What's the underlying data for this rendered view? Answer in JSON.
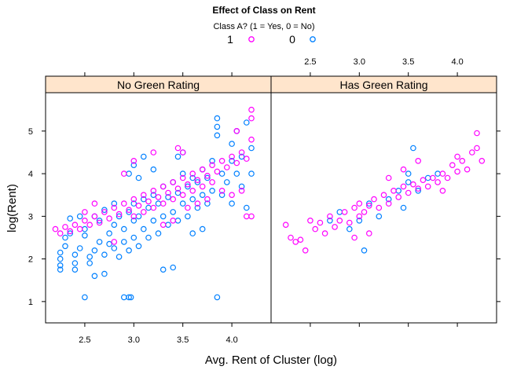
{
  "chart_data": {
    "type": "scatter",
    "title": "Effect of Class on Rent",
    "xlabel": "Avg. Rent of Cluster (log)",
    "ylabel": "log(Rent)",
    "legend": {
      "title": "Class A? (1 = Yes, 0 = No)",
      "placement": "top",
      "entries": [
        {
          "label": "1",
          "color": "#ff00ff"
        },
        {
          "label": "0",
          "color": "#0080ff"
        }
      ]
    },
    "xlim": [
      2.1,
      4.4
    ],
    "ylim": [
      0.5,
      5.9
    ],
    "x_ticks": [
      "2.5",
      "3.0",
      "3.5",
      "4.0"
    ],
    "y_ticks": [
      "1",
      "2",
      "3",
      "4",
      "5"
    ],
    "panels": [
      {
        "label": "No Green Rating",
        "strip_color": "#ffe5cc",
        "series": [
          {
            "name": "0",
            "color": "#0080ff",
            "points": [
              [
                2.25,
                1.75
              ],
              [
                2.25,
                1.85
              ],
              [
                2.25,
                2.0
              ],
              [
                2.25,
                2.15
              ],
              [
                2.3,
                2.3
              ],
              [
                2.3,
                2.5
              ],
              [
                2.35,
                2.6
              ],
              [
                2.4,
                1.75
              ],
              [
                2.4,
                1.9
              ],
              [
                2.4,
                2.1
              ],
              [
                2.45,
                2.25
              ],
              [
                2.5,
                2.55
              ],
              [
                2.5,
                2.7
              ],
              [
                2.55,
                1.9
              ],
              [
                2.55,
                2.05
              ],
              [
                2.6,
                1.6
              ],
              [
                2.6,
                2.2
              ],
              [
                2.65,
                2.4
              ],
              [
                2.65,
                2.9
              ],
              [
                2.7,
                1.65
              ],
              [
                2.7,
                2.1
              ],
              [
                2.75,
                2.35
              ],
              [
                2.75,
                2.6
              ],
              [
                2.8,
                2.25
              ],
              [
                2.8,
                2.8
              ],
              [
                2.85,
                2.05
              ],
              [
                2.85,
                3.0
              ],
              [
                2.9,
                2.4
              ],
              [
                2.9,
                2.7
              ],
              [
                2.95,
                2.2
              ],
              [
                2.95,
                3.1
              ],
              [
                3.0,
                2.5
              ],
              [
                3.0,
                2.9
              ],
              [
                3.0,
                3.3
              ],
              [
                3.05,
                2.3
              ],
              [
                3.05,
                3.0
              ],
              [
                3.1,
                2.7
              ],
              [
                3.1,
                3.4
              ],
              [
                3.15,
                2.5
              ],
              [
                3.15,
                3.2
              ],
              [
                3.2,
                2.9
              ],
              [
                3.2,
                3.5
              ],
              [
                3.25,
                2.6
              ],
              [
                3.25,
                3.3
              ],
              [
                3.3,
                3.0
              ],
              [
                3.3,
                3.7
              ],
              [
                3.35,
                2.8
              ],
              [
                3.35,
                3.45
              ],
              [
                3.4,
                3.1
              ],
              [
                3.4,
                3.8
              ],
              [
                3.45,
                2.9
              ],
              [
                3.45,
                3.55
              ],
              [
                3.5,
                3.3
              ],
              [
                3.5,
                4.0
              ],
              [
                3.55,
                3.0
              ],
              [
                3.55,
                3.7
              ],
              [
                3.6,
                3.4
              ],
              [
                3.6,
                3.9
              ],
              [
                3.65,
                3.2
              ],
              [
                3.65,
                3.8
              ],
              [
                3.7,
                3.5
              ],
              [
                3.7,
                4.1
              ],
              [
                3.75,
                3.3
              ],
              [
                3.75,
                3.9
              ],
              [
                3.8,
                3.6
              ],
              [
                3.8,
                4.3
              ],
              [
                3.85,
                4.9
              ],
              [
                3.85,
                5.1
              ],
              [
                3.85,
                5.3
              ],
              [
                3.9,
                3.5
              ],
              [
                3.9,
                4.0
              ],
              [
                3.95,
                3.8
              ],
              [
                4.0,
                4.3
              ],
              [
                4.0,
                4.7
              ],
              [
                4.0,
                3.3
              ],
              [
                4.05,
                4.0
              ],
              [
                4.05,
                5.0
              ],
              [
                4.1,
                3.7
              ],
              [
                4.1,
                4.4
              ],
              [
                4.15,
                5.2
              ],
              [
                4.15,
                3.2
              ],
              [
                4.2,
                4.0
              ],
              [
                4.2,
                4.6
              ],
              [
                2.5,
                1.1
              ],
              [
                2.9,
                1.1
              ],
              [
                2.95,
                1.1
              ],
              [
                2.97,
                1.1
              ],
              [
                3.85,
                1.1
              ],
              [
                2.95,
                4.0
              ],
              [
                3.0,
                4.2
              ],
              [
                3.05,
                3.9
              ],
              [
                3.1,
                4.4
              ],
              [
                3.2,
                4.1
              ],
              [
                3.3,
                1.75
              ],
              [
                3.4,
                1.8
              ],
              [
                2.6,
                3.0
              ],
              [
                2.7,
                3.15
              ],
              [
                2.8,
                3.3
              ],
              [
                3.6,
                2.6
              ],
              [
                3.7,
                2.7
              ],
              [
                3.45,
                4.4
              ],
              [
                3.5,
                4.5
              ],
              [
                2.35,
                2.95
              ],
              [
                2.45,
                3.0
              ]
            ]
          },
          {
            "name": "1",
            "color": "#ff00ff",
            "points": [
              [
                2.2,
                2.7
              ],
              [
                2.25,
                2.6
              ],
              [
                2.3,
                2.75
              ],
              [
                2.35,
                2.65
              ],
              [
                2.4,
                2.8
              ],
              [
                2.45,
                2.7
              ],
              [
                2.5,
                2.9
              ],
              [
                2.55,
                2.8
              ],
              [
                2.6,
                3.0
              ],
              [
                2.65,
                2.85
              ],
              [
                2.7,
                3.1
              ],
              [
                2.75,
                2.95
              ],
              [
                2.8,
                3.2
              ],
              [
                2.85,
                3.05
              ],
              [
                2.9,
                3.3
              ],
              [
                2.95,
                3.15
              ],
              [
                3.0,
                3.4
              ],
              [
                3.0,
                3.0
              ],
              [
                3.05,
                3.25
              ],
              [
                3.1,
                3.5
              ],
              [
                3.1,
                3.1
              ],
              [
                3.15,
                3.35
              ],
              [
                3.2,
                3.6
              ],
              [
                3.2,
                3.2
              ],
              [
                3.25,
                3.45
              ],
              [
                3.3,
                3.7
              ],
              [
                3.3,
                3.3
              ],
              [
                3.35,
                3.55
              ],
              [
                3.4,
                3.8
              ],
              [
                3.4,
                3.4
              ],
              [
                3.45,
                3.65
              ],
              [
                3.5,
                3.9
              ],
              [
                3.5,
                3.5
              ],
              [
                3.55,
                3.75
              ],
              [
                3.6,
                4.0
              ],
              [
                3.6,
                3.6
              ],
              [
                3.65,
                3.85
              ],
              [
                3.7,
                4.1
              ],
              [
                3.7,
                3.7
              ],
              [
                3.75,
                3.95
              ],
              [
                3.8,
                4.2
              ],
              [
                3.8,
                3.8
              ],
              [
                3.85,
                4.05
              ],
              [
                3.9,
                4.3
              ],
              [
                3.95,
                4.15
              ],
              [
                4.0,
                4.4
              ],
              [
                4.05,
                4.25
              ],
              [
                4.1,
                4.5
              ],
              [
                4.15,
                4.35
              ],
              [
                4.2,
                5.5
              ],
              [
                4.2,
                5.3
              ],
              [
                4.2,
                4.8
              ],
              [
                4.2,
                3.0
              ],
              [
                4.15,
                3.0
              ],
              [
                4.05,
                5.0
              ],
              [
                4.1,
                3.6
              ],
              [
                3.45,
                4.6
              ],
              [
                3.5,
                4.5
              ],
              [
                3.2,
                4.5
              ],
              [
                3.0,
                4.3
              ],
              [
                2.9,
                4.0
              ],
              [
                2.8,
                2.4
              ],
              [
                2.6,
                3.3
              ],
              [
                2.5,
                3.1
              ],
              [
                3.3,
                2.8
              ],
              [
                3.4,
                2.9
              ],
              [
                3.55,
                3.2
              ],
              [
                3.65,
                3.3
              ],
              [
                3.75,
                3.4
              ],
              [
                3.9,
                3.6
              ],
              [
                4.0,
                3.5
              ]
            ]
          }
        ]
      },
      {
        "label": "Has Green Rating",
        "strip_color": "#ffe5cc",
        "series": [
          {
            "name": "0",
            "color": "#0080ff",
            "points": [
              [
                2.7,
                2.9
              ],
              [
                2.8,
                3.1
              ],
              [
                2.9,
                2.7
              ],
              [
                3.0,
                2.9
              ],
              [
                3.05,
                2.2
              ],
              [
                3.1,
                3.3
              ],
              [
                3.2,
                3.0
              ],
              [
                3.3,
                3.4
              ],
              [
                3.4,
                3.6
              ],
              [
                3.45,
                3.2
              ],
              [
                3.5,
                3.8
              ],
              [
                3.5,
                4.0
              ],
              [
                3.55,
                4.6
              ],
              [
                3.6,
                3.6
              ],
              [
                3.7,
                3.9
              ],
              [
                3.8,
                4.0
              ]
            ]
          },
          {
            "name": "1",
            "color": "#ff00ff",
            "points": [
              [
                2.25,
                2.8
              ],
              [
                2.3,
                2.5
              ],
              [
                2.35,
                2.4
              ],
              [
                2.4,
                2.45
              ],
              [
                2.45,
                2.2
              ],
              [
                2.5,
                2.9
              ],
              [
                2.55,
                2.7
              ],
              [
                2.6,
                2.85
              ],
              [
                2.65,
                2.6
              ],
              [
                2.7,
                3.0
              ],
              [
                2.75,
                2.75
              ],
              [
                2.8,
                2.9
              ],
              [
                2.85,
                3.1
              ],
              [
                2.9,
                2.85
              ],
              [
                2.95,
                3.2
              ],
              [
                3.0,
                3.0
              ],
              [
                3.0,
                3.3
              ],
              [
                3.05,
                3.1
              ],
              [
                3.1,
                3.25
              ],
              [
                3.15,
                3.4
              ],
              [
                3.2,
                3.2
              ],
              [
                3.25,
                3.5
              ],
              [
                3.3,
                3.3
              ],
              [
                3.35,
                3.6
              ],
              [
                3.4,
                3.45
              ],
              [
                3.45,
                3.7
              ],
              [
                3.5,
                3.55
              ],
              [
                3.55,
                3.75
              ],
              [
                3.6,
                3.65
              ],
              [
                3.65,
                3.85
              ],
              [
                3.7,
                3.7
              ],
              [
                3.75,
                3.9
              ],
              [
                3.8,
                3.8
              ],
              [
                3.85,
                4.0
              ],
              [
                3.9,
                3.9
              ],
              [
                3.95,
                4.2
              ],
              [
                4.0,
                4.05
              ],
              [
                4.05,
                4.3
              ],
              [
                4.1,
                4.1
              ],
              [
                4.15,
                4.5
              ],
              [
                4.2,
                4.95
              ],
              [
                4.2,
                4.6
              ],
              [
                4.25,
                4.3
              ],
              [
                4.0,
                4.4
              ],
              [
                3.6,
                4.3
              ],
              [
                3.1,
                2.6
              ],
              [
                2.95,
                2.5
              ],
              [
                3.3,
                3.9
              ],
              [
                3.45,
                4.1
              ],
              [
                3.85,
                3.6
              ]
            ]
          }
        ]
      }
    ]
  }
}
